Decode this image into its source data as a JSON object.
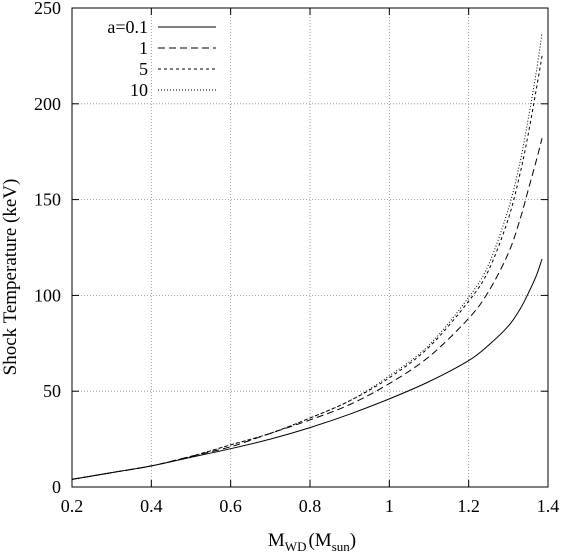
{
  "chart_data": {
    "type": "line",
    "xlabel": {
      "main": "M",
      "main_sub": "WD",
      "paren_open": "(M",
      "paren_sub": "sun",
      "paren_close": ")"
    },
    "ylabel": "Shock Temperature  (keV)",
    "xlim": [
      0.2,
      1.4
    ],
    "ylim": [
      0,
      250
    ],
    "xticks": [
      0.2,
      0.4,
      0.6,
      0.8,
      1.0,
      1.2,
      1.4
    ],
    "xtick_labels": [
      "0.2",
      "0.4",
      "0.6",
      "0.8",
      "1",
      "1.2",
      "1.4"
    ],
    "yticks": [
      0,
      50,
      100,
      150,
      200,
      250
    ],
    "ytick_labels": [
      "0",
      "50",
      "100",
      "150",
      "200",
      "250"
    ],
    "grid": true,
    "legend_position": "top-left",
    "series": [
      {
        "name": "a=0.1",
        "line_style": "solid",
        "x": [
          0.2,
          0.3,
          0.4,
          0.5,
          0.6,
          0.7,
          0.8,
          0.9,
          1.0,
          1.1,
          1.2,
          1.25,
          1.3,
          1.33,
          1.35,
          1.37,
          1.385
        ],
        "y": [
          4,
          7.5,
          11,
          15.5,
          20,
          25,
          31,
          38,
          46,
          55,
          66,
          74,
          84,
          93,
          101,
          110,
          119
        ]
      },
      {
        "name": "1",
        "line_style": "dashed",
        "x": [
          0.2,
          0.3,
          0.4,
          0.5,
          0.6,
          0.7,
          0.8,
          0.9,
          1.0,
          1.1,
          1.2,
          1.25,
          1.3,
          1.33,
          1.35,
          1.37,
          1.385
        ],
        "y": [
          4,
          7.5,
          11,
          16,
          21,
          28,
          35,
          43,
          54,
          68,
          88,
          102,
          122,
          140,
          155,
          170,
          182
        ]
      },
      {
        "name": "5",
        "line_style": "short-dashed",
        "x": [
          0.2,
          0.3,
          0.4,
          0.5,
          0.6,
          0.7,
          0.8,
          0.9,
          1.0,
          1.1,
          1.2,
          1.25,
          1.3,
          1.33,
          1.35,
          1.37,
          1.385
        ],
        "y": [
          4,
          7.5,
          11,
          16,
          22,
          28,
          36,
          45,
          57,
          73,
          97,
          113,
          140,
          164,
          184,
          207,
          225
        ]
      },
      {
        "name": "10",
        "line_style": "dotted",
        "x": [
          0.2,
          0.3,
          0.4,
          0.5,
          0.6,
          0.7,
          0.8,
          0.9,
          1.0,
          1.1,
          1.2,
          1.25,
          1.3,
          1.33,
          1.35,
          1.37,
          1.385
        ],
        "y": [
          4,
          7.5,
          11,
          16,
          22,
          28,
          36,
          45,
          58,
          74,
          99,
          116,
          145,
          170,
          192,
          216,
          237
        ]
      }
    ]
  }
}
